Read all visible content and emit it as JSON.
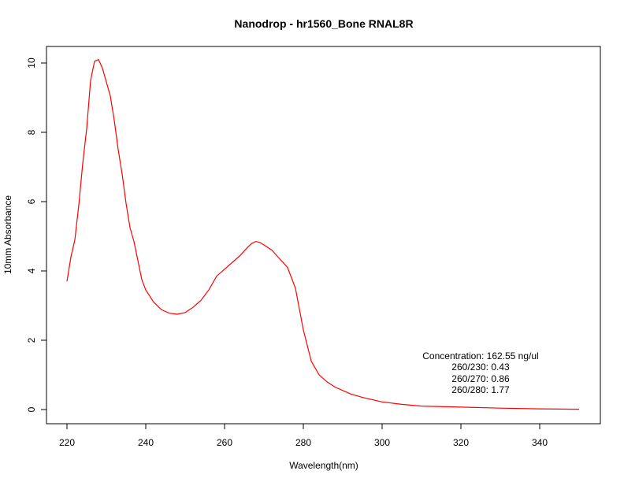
{
  "chart_data": {
    "type": "line",
    "title": "Nanodrop - hr1560_Bone RNAL8R",
    "xlabel": "Wavelength(nm)",
    "ylabel": "10mm Absorbance",
    "xlim": [
      220,
      350
    ],
    "ylim": [
      0,
      10
    ],
    "x_ticks": [
      220,
      240,
      260,
      280,
      300,
      320,
      340
    ],
    "y_ticks": [
      0,
      2,
      4,
      6,
      8,
      10
    ],
    "grid": false,
    "series": [
      {
        "color": "#ff0000",
        "x": [
          220,
          221,
          222,
          223,
          224,
          225,
          226,
          227,
          228,
          229,
          230,
          231,
          232,
          233,
          234,
          235,
          236,
          237,
          238,
          239,
          240,
          242,
          244,
          246,
          248,
          250,
          252,
          254,
          256,
          258,
          260,
          262,
          264,
          266,
          267,
          268,
          269,
          270,
          272,
          274,
          276,
          278,
          280,
          282,
          284,
          286,
          288,
          290,
          292,
          295,
          300,
          305,
          310,
          320,
          330,
          340,
          350
        ],
        "y": [
          3.7,
          4.4,
          4.9,
          5.9,
          7.1,
          8.1,
          9.5,
          10.05,
          10.1,
          9.85,
          9.45,
          9.05,
          8.35,
          7.5,
          6.8,
          5.95,
          5.25,
          4.85,
          4.3,
          3.75,
          3.45,
          3.1,
          2.88,
          2.78,
          2.75,
          2.8,
          2.95,
          3.15,
          3.45,
          3.85,
          4.05,
          4.25,
          4.45,
          4.7,
          4.8,
          4.85,
          4.82,
          4.75,
          4.6,
          4.35,
          4.1,
          3.5,
          2.3,
          1.4,
          1.0,
          0.8,
          0.65,
          0.55,
          0.45,
          0.35,
          0.22,
          0.15,
          0.1,
          0.07,
          0.04,
          0.02,
          0.01
        ]
      }
    ],
    "annotations": [
      "Concentration: 162.55 ng/ul",
      "260/230: 0.43",
      "260/270: 0.86",
      "260/280: 1.77"
    ]
  }
}
